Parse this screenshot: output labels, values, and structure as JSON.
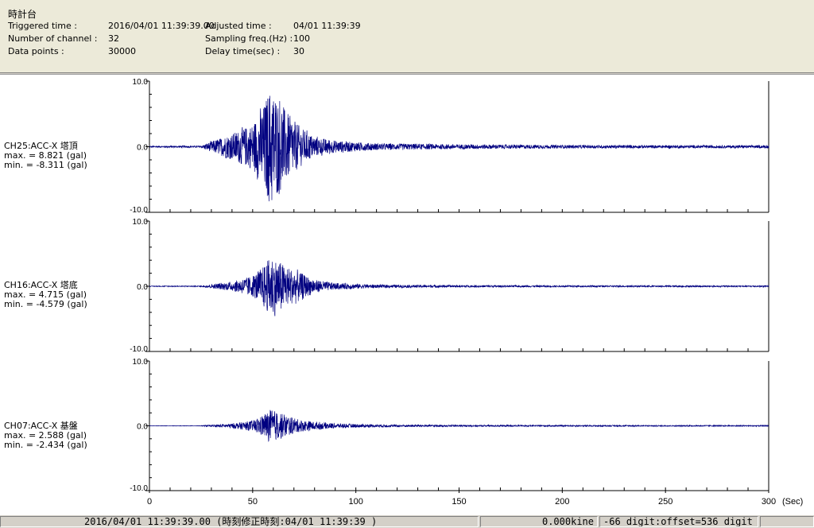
{
  "header": {
    "title": "時計台",
    "triggered_label": "Triggered time :",
    "triggered_value": "2016/04/01 11:39:39.00",
    "channels_label": "Number of channel :",
    "channels_value": "32",
    "datapoints_label": "Data points :",
    "datapoints_value": "30000",
    "adjusted_label": "Adjusted time :",
    "adjusted_value": "04/01 11:39:39",
    "sampling_label": "Sampling freq.(Hz) :",
    "sampling_value": "100",
    "delay_label": "Delay time(sec) :",
    "delay_value": "30"
  },
  "channels": [
    {
      "name": "CH25:ACC-X 塔頂",
      "max_text": "max. = 8.821 (gal)",
      "min_text": "min. = -8.311 (gal)"
    },
    {
      "name": "CH16:ACC-X 塔底",
      "max_text": "max. = 4.715 (gal)",
      "min_text": "min. = -4.579 (gal)"
    },
    {
      "name": "CH07:ACC-X 基盤",
      "max_text": "max. = 2.588 (gal)",
      "min_text": "min. = -2.434 (gal)"
    }
  ],
  "statusbar": {
    "time_text": "2016/04/01 11:39:39.00  (時刻修正時刻:04/01 11:39:39  )",
    "velocity_text": "0.000kine",
    "offset_text": "-66 digit:offset=536 digit"
  },
  "colors": {
    "trace": "#000080",
    "axis": "#000000",
    "background": "#ffffff"
  },
  "chart_data": {
    "type": "line",
    "xlabel": "(Sec)",
    "xlim": [
      0,
      300
    ],
    "x_ticks": [
      0,
      50,
      100,
      150,
      200,
      250,
      300
    ],
    "y_tick_labels": [
      "10.0",
      "0.0",
      "-10.0"
    ],
    "ylim": [
      -10,
      10
    ],
    "grid": false,
    "series": [
      {
        "name": "CH25:ACC-X 塔頂",
        "max": 8.821,
        "min": -8.311,
        "envelope": [
          [
            0,
            0.12
          ],
          [
            25,
            0.15
          ],
          [
            30,
            0.8
          ],
          [
            40,
            2.0
          ],
          [
            50,
            3.5
          ],
          [
            55,
            6.0
          ],
          [
            58,
            8.8
          ],
          [
            62,
            7.5
          ],
          [
            66,
            5.5
          ],
          [
            70,
            4.0
          ],
          [
            75,
            2.5
          ],
          [
            80,
            1.5
          ],
          [
            90,
            0.9
          ],
          [
            110,
            0.5
          ],
          [
            150,
            0.35
          ],
          [
            200,
            0.25
          ],
          [
            300,
            0.2
          ]
        ]
      },
      {
        "name": "CH16:ACC-X 塔底",
        "max": 4.715,
        "min": -4.579,
        "envelope": [
          [
            0,
            0.05
          ],
          [
            25,
            0.08
          ],
          [
            30,
            0.3
          ],
          [
            40,
            0.7
          ],
          [
            50,
            1.6
          ],
          [
            55,
            3.0
          ],
          [
            59,
            4.7
          ],
          [
            63,
            3.8
          ],
          [
            67,
            3.0
          ],
          [
            72,
            2.2
          ],
          [
            80,
            1.0
          ],
          [
            90,
            0.5
          ],
          [
            110,
            0.25
          ],
          [
            150,
            0.15
          ],
          [
            200,
            0.12
          ],
          [
            300,
            0.1
          ]
        ]
      },
      {
        "name": "CH07:ACC-X 基盤",
        "max": 2.588,
        "min": -2.434,
        "envelope": [
          [
            0,
            0.02
          ],
          [
            25,
            0.04
          ],
          [
            30,
            0.15
          ],
          [
            40,
            0.35
          ],
          [
            50,
            0.8
          ],
          [
            55,
            1.6
          ],
          [
            59,
            2.6
          ],
          [
            63,
            2.0
          ],
          [
            67,
            1.5
          ],
          [
            72,
            1.0
          ],
          [
            80,
            0.6
          ],
          [
            90,
            0.35
          ],
          [
            110,
            0.2
          ],
          [
            150,
            0.12
          ],
          [
            200,
            0.1
          ],
          [
            300,
            0.08
          ]
        ]
      }
    ]
  }
}
